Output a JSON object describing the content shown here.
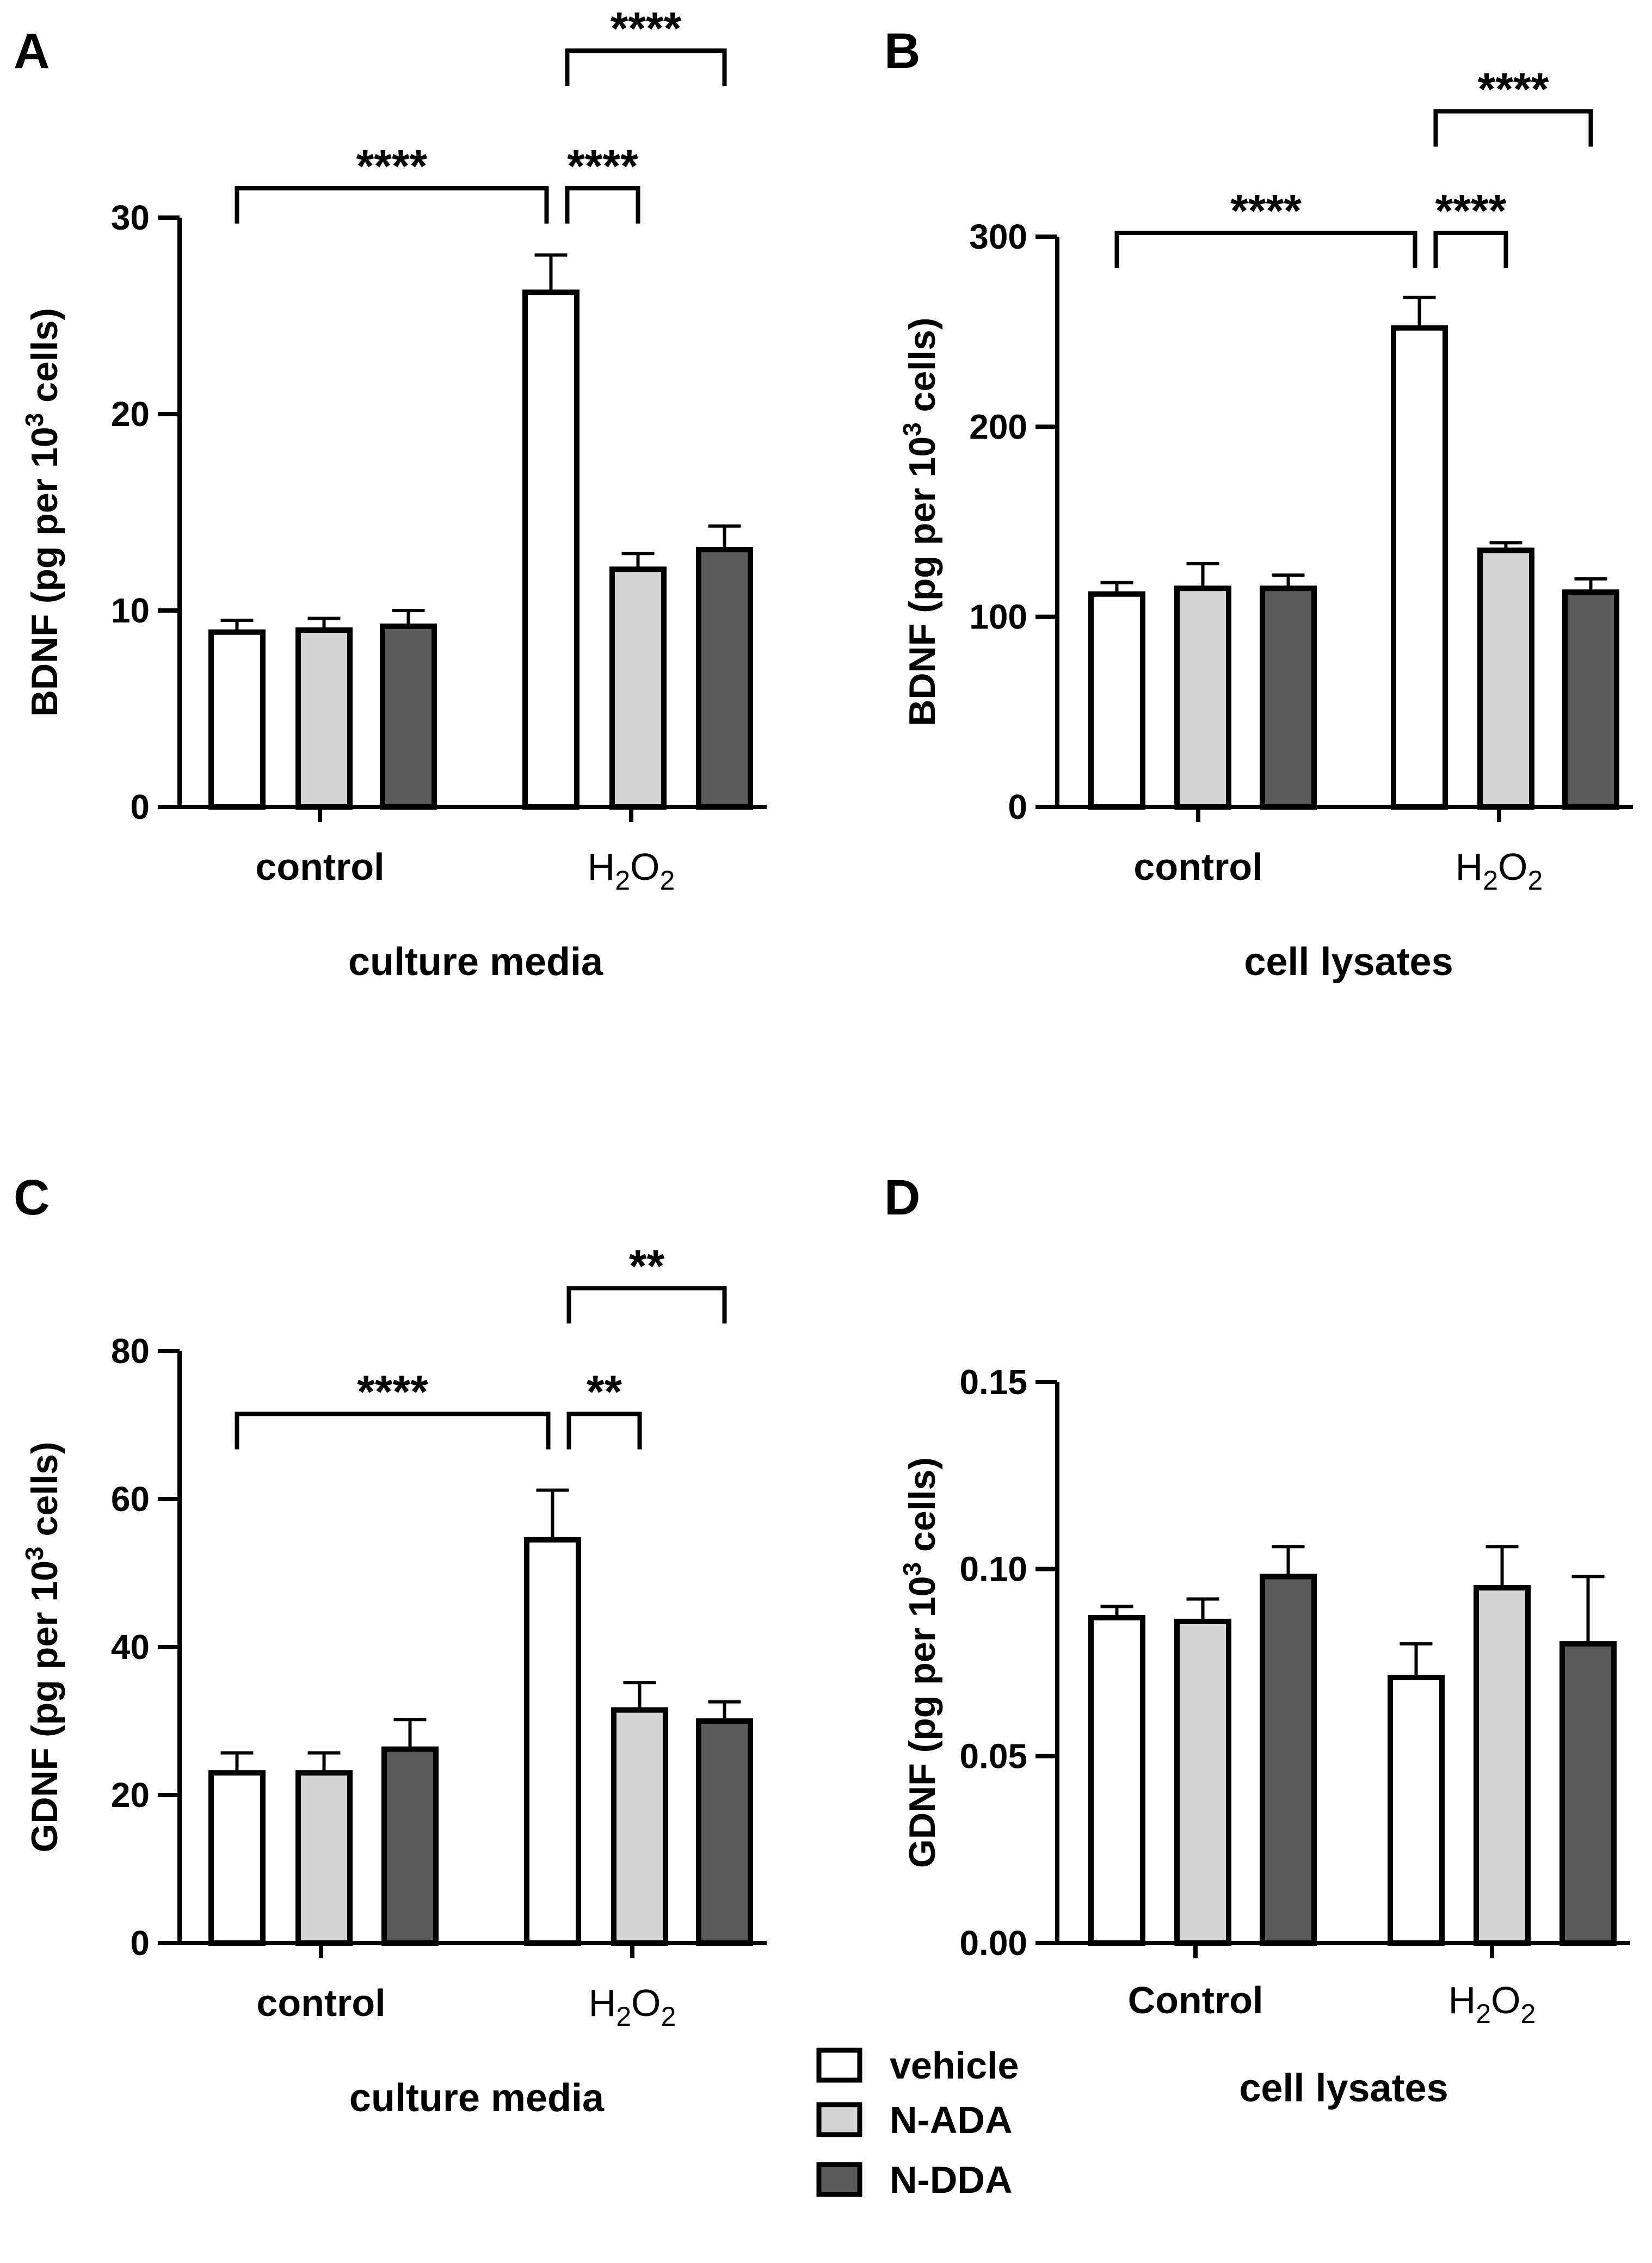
{
  "colors": {
    "vehicle": "#ffffff",
    "N-ADA": "#d4d4d4",
    "N-DDA": "#5b5b5b",
    "stroke": "#000000"
  },
  "legend": {
    "items": [
      {
        "label": "vehicle",
        "color": "#ffffff"
      },
      {
        "label": "N-ADA",
        "color": "#d4d4d4"
      },
      {
        "label": "N-DDA",
        "color": "#5b5b5b"
      }
    ]
  },
  "chart_data": [
    {
      "panel": "A",
      "type": "bar",
      "ylabel": "BDNF (pg per 10",
      "ylabel_sup": "3",
      "ylabel_end": " cells)",
      "xlabel": "culture media",
      "categories": [
        {
          "main": "control"
        },
        {
          "main": "H",
          "sub1": "2",
          "mid": "O",
          "sub2": "2"
        }
      ],
      "ylim": [
        0,
        30
      ],
      "ticks": [
        0,
        10,
        20,
        30
      ],
      "tick_labels": [
        "0",
        "10",
        "20",
        "30"
      ],
      "series": [
        {
          "name": "vehicle",
          "values": [
            8.9,
            26.2
          ],
          "errors": [
            0.6,
            1.9
          ]
        },
        {
          "name": "N-ADA",
          "values": [
            9.0,
            12.1
          ],
          "errors": [
            0.6,
            0.8
          ]
        },
        {
          "name": "N-DDA",
          "values": [
            9.2,
            13.1
          ],
          "errors": [
            0.8,
            1.2
          ]
        }
      ],
      "significance": [
        {
          "from": [
            0,
            "vehicle"
          ],
          "to": [
            1,
            "vehicle"
          ],
          "label": "****",
          "y": 31.5
        },
        {
          "from": [
            1,
            "vehicle"
          ],
          "to": [
            1,
            "N-ADA"
          ],
          "label": "****",
          "y": 31.5
        },
        {
          "from": [
            1,
            "vehicle"
          ],
          "to": [
            1,
            "N-DDA"
          ],
          "label": "****",
          "y": 38.5
        }
      ]
    },
    {
      "panel": "B",
      "type": "bar",
      "ylabel": "BDNF (pg per 10",
      "ylabel_sup": "3",
      "ylabel_end": " cells)",
      "xlabel": "cell lysates",
      "categories": [
        {
          "main": "control"
        },
        {
          "main": "H",
          "sub1": "2",
          "mid": "O",
          "sub2": "2"
        }
      ],
      "ylim": [
        0,
        300
      ],
      "ticks": [
        0,
        100,
        200,
        300
      ],
      "tick_labels": [
        "0",
        "100",
        "200",
        "300"
      ],
      "series": [
        {
          "name": "vehicle",
          "values": [
            112,
            252
          ],
          "errors": [
            6,
            16
          ]
        },
        {
          "name": "N-ADA",
          "values": [
            115,
            135
          ],
          "errors": [
            13,
            4
          ]
        },
        {
          "name": "N-DDA",
          "values": [
            115,
            113
          ],
          "errors": [
            7,
            7
          ]
        }
      ],
      "significance": [
        {
          "from": [
            0,
            "vehicle"
          ],
          "to": [
            1,
            "vehicle"
          ],
          "label": "****",
          "y": 302
        },
        {
          "from": [
            1,
            "vehicle"
          ],
          "to": [
            1,
            "N-ADA"
          ],
          "label": "****",
          "y": 302
        },
        {
          "from": [
            1,
            "vehicle"
          ],
          "to": [
            1,
            "N-DDA"
          ],
          "label": "****",
          "y": 366
        }
      ]
    },
    {
      "panel": "C",
      "type": "bar",
      "ylabel": "GDNF (pg per 10",
      "ylabel_sup": "3",
      "ylabel_end": " cells)",
      "xlabel": "culture media",
      "categories": [
        {
          "main": "control"
        },
        {
          "main": "H",
          "sub1": "2",
          "mid": "O",
          "sub2": "2"
        }
      ],
      "ylim": [
        0,
        80
      ],
      "ticks": [
        0,
        20,
        40,
        60,
        80
      ],
      "tick_labels": [
        "0",
        "20",
        "40",
        "60",
        "80"
      ],
      "series": [
        {
          "name": "vehicle",
          "values": [
            23.0,
            54.5
          ],
          "errors": [
            2.7,
            6.7
          ]
        },
        {
          "name": "N-ADA",
          "values": [
            23.0,
            31.5
          ],
          "errors": [
            2.7,
            3.7
          ]
        },
        {
          "name": "N-DDA",
          "values": [
            26.2,
            30.0
          ],
          "errors": [
            4.0,
            2.6
          ]
        }
      ],
      "significance": [
        {
          "from": [
            0,
            "vehicle"
          ],
          "to": [
            1,
            "vehicle"
          ],
          "label": "****",
          "y": 71.5
        },
        {
          "from": [
            1,
            "vehicle"
          ],
          "to": [
            1,
            "N-ADA"
          ],
          "label": "**",
          "y": 71.5
        },
        {
          "from": [
            1,
            "vehicle"
          ],
          "to": [
            1,
            "N-DDA"
          ],
          "label": "**",
          "y": 88.5
        }
      ]
    },
    {
      "panel": "D",
      "type": "bar",
      "ylabel": "GDNF (pg per 10",
      "ylabel_sup": "3",
      "ylabel_end": " cells)",
      "xlabel": "cell lysates",
      "categories": [
        {
          "main": "Control"
        },
        {
          "main": "H",
          "sub1": "2",
          "mid": "O",
          "sub2": "2"
        }
      ],
      "ylim": [
        0,
        0.15
      ],
      "ticks": [
        0,
        0.05,
        0.1,
        0.15
      ],
      "tick_labels": [
        "0.00",
        "0.05",
        "0.10",
        "0.15"
      ],
      "series": [
        {
          "name": "vehicle",
          "values": [
            0.087,
            0.071
          ],
          "errors": [
            0.003,
            0.009
          ]
        },
        {
          "name": "N-ADA",
          "values": [
            0.086,
            0.095
          ],
          "errors": [
            0.006,
            0.011
          ]
        },
        {
          "name": "N-DDA",
          "values": [
            0.098,
            0.08
          ],
          "errors": [
            0.008,
            0.018
          ]
        }
      ],
      "significance": []
    }
  ]
}
